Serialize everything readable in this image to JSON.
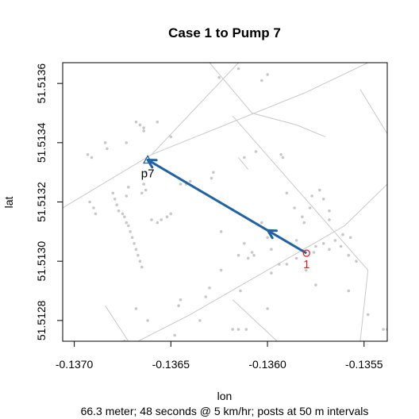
{
  "chart_data": {
    "type": "scatter",
    "title": "Case 1 to Pump 7",
    "xlabel": "lon",
    "ylabel": "lat",
    "subtitle": "66.3 meter; 48 seconds @ 5 km/hr; posts at 50 m intervals",
    "xlim": [
      -0.13706,
      -0.13538
    ],
    "ylim": [
      51.51273,
      51.51367
    ],
    "xticks": [
      -0.137,
      -0.1365,
      -0.136,
      -0.1355
    ],
    "xtick_labels": [
      "-0.1370",
      "-0.1365",
      "-0.1360",
      "-0.1355"
    ],
    "yticks": [
      51.5128,
      51.513,
      51.5132,
      51.5134,
      51.5136
    ],
    "ytick_labels": [
      "51.5128",
      "51.5130",
      "51.5132",
      "51.5134",
      "51.5136"
    ],
    "grid": false,
    "colors": {
      "path": "#1f62a5",
      "case": "#e3201c",
      "points": "#c8c8c8",
      "roads": "#c8c8c8",
      "pump": "#1f62a5"
    },
    "case": {
      "label": "1",
      "lon": -0.135798,
      "lat": 51.513027
    },
    "pump": {
      "label": "p7",
      "lon": -0.13662,
      "lat": 51.513342
    },
    "path": [
      [
        -0.135798,
        51.513027
      ],
      [
        -0.13662,
        51.513342
      ]
    ],
    "posts": [
      [
        -0.135998,
        51.513104
      ]
    ],
    "roads": [
      [
        [
          -0.13706,
          51.51318
        ],
        [
          -0.1366,
          51.51336
        ],
        [
          -0.1358,
          51.51357
        ],
        [
          -0.13548,
          51.51367
        ]
      ],
      [
        [
          -0.1366,
          51.51336
        ],
        [
          -0.13615,
          51.51367
        ]
      ],
      [
        [
          -0.1363,
          51.51367
        ],
        [
          -0.13608,
          51.5135
        ],
        [
          -0.13585,
          51.51346
        ],
        [
          -0.1357,
          51.51342
        ]
      ],
      [
        [
          -0.13618,
          51.51349
        ],
        [
          -0.13548,
          51.51297
        ]
      ],
      [
        [
          -0.13706,
          51.5126
        ],
        [
          -0.1364,
          51.51282
        ],
        [
          -0.1356,
          51.51312
        ],
        [
          -0.13538,
          51.51326
        ]
      ],
      [
        [
          -0.13684,
          51.51285
        ],
        [
          -0.13672,
          51.51273
        ]
      ],
      [
        [
          -0.13618,
          51.51287
        ],
        [
          -0.13595,
          51.51273
        ]
      ],
      [
        [
          -0.13548,
          51.51297
        ],
        [
          -0.13552,
          51.51273
        ]
      ],
      [
        [
          -0.13552,
          51.51358
        ],
        [
          -0.13538,
          51.51343
        ]
      ],
      [
        [
          -0.13615,
          51.51335
        ],
        [
          -0.1361,
          51.51331
        ]
      ]
    ],
    "points": [
      [
        -0.13693,
        51.51336
      ],
      [
        -0.13691,
        51.51335
      ],
      [
        -0.13684,
        51.5134
      ],
      [
        -0.13683,
        51.51338
      ],
      [
        -0.13673,
        51.5134
      ],
      [
        -0.13668,
        51.51347
      ],
      [
        -0.13666,
        51.51346
      ],
      [
        -0.13664,
        51.51345
      ],
      [
        -0.13664,
        51.51344
      ],
      [
        -0.13657,
        51.51347
      ],
      [
        -0.13692,
        51.5132
      ],
      [
        -0.1369,
        51.51318
      ],
      [
        -0.13689,
        51.51316
      ],
      [
        -0.1368,
        51.51323
      ],
      [
        -0.13679,
        51.51321
      ],
      [
        -0.13678,
        51.51319
      ],
      [
        -0.13677,
        51.51317
      ],
      [
        -0.13675,
        51.51316
      ],
      [
        -0.13674,
        51.51315
      ],
      [
        -0.13673,
        51.51313
      ],
      [
        -0.13672,
        51.51312
      ],
      [
        -0.13671,
        51.5131
      ],
      [
        -0.1367,
        51.51308
      ],
      [
        -0.13669,
        51.51306
      ],
      [
        -0.13668,
        51.51304
      ],
      [
        -0.13667,
        51.51302
      ],
      [
        -0.13666,
        51.513
      ],
      [
        -0.13665,
        51.51298
      ],
      [
        -0.13673,
        51.51322
      ],
      [
        -0.13672,
        51.51325
      ],
      [
        -0.13665,
        51.51323
      ],
      [
        -0.13664,
        51.51326
      ],
      [
        -0.13663,
        51.51324
      ],
      [
        -0.1366,
        51.51314
      ],
      [
        -0.13657,
        51.51313
      ],
      [
        -0.13655,
        51.51314
      ],
      [
        -0.13652,
        51.51315
      ],
      [
        -0.1365,
        51.51316
      ],
      [
        -0.13645,
        51.51326
      ],
      [
        -0.13642,
        51.51326
      ],
      [
        -0.1364,
        51.51327
      ],
      [
        -0.13629,
        51.51328
      ],
      [
        -0.13624,
        51.5131
      ],
      [
        -0.13612,
        51.51335
      ],
      [
        -0.13606,
        51.51337
      ],
      [
        -0.13612,
        51.51306
      ],
      [
        -0.13615,
        51.51302
      ],
      [
        -0.1361,
        51.51301
      ],
      [
        -0.13607,
        51.51302
      ],
      [
        -0.13603,
        51.51313
      ],
      [
        -0.136,
        51.51308
      ],
      [
        -0.13608,
        51.51303
      ],
      [
        -0.13598,
        51.51304
      ],
      [
        -0.13593,
        51.51336
      ],
      [
        -0.13592,
        51.51335
      ],
      [
        -0.1359,
        51.51323
      ],
      [
        -0.13586,
        51.51318
      ],
      [
        -0.13582,
        51.51315
      ],
      [
        -0.13581,
        51.51313
      ],
      [
        -0.13577,
        51.51322
      ],
      [
        -0.13578,
        51.51318
      ],
      [
        -0.13573,
        51.51324
      ],
      [
        -0.13571,
        51.51321
      ],
      [
        -0.13568,
        51.51317
      ],
      [
        -0.13568,
        51.51314
      ],
      [
        -0.13576,
        51.51303
      ],
      [
        -0.13575,
        51.51305
      ],
      [
        -0.13571,
        51.51306
      ],
      [
        -0.13568,
        51.51304
      ],
      [
        -0.13565,
        51.51307
      ],
      [
        -0.13562,
        51.51305
      ],
      [
        -0.13558,
        51.51302
      ],
      [
        -0.13554,
        51.513
      ],
      [
        -0.13594,
        51.51299
      ],
      [
        -0.1359,
        51.51299
      ],
      [
        -0.13585,
        51.51301
      ],
      [
        -0.13585,
        51.51307
      ],
      [
        -0.13614,
        51.5129
      ],
      [
        -0.13632,
        51.51288
      ],
      [
        -0.13645,
        51.51287
      ],
      [
        -0.13646,
        51.51285
      ],
      [
        -0.13662,
        51.5128
      ],
      [
        -0.13668,
        51.51284
      ],
      [
        -0.13674,
        51.51273
      ],
      [
        -0.13648,
        51.51275
      ],
      [
        -0.13618,
        51.51277
      ],
      [
        -0.13615,
        51.51277
      ],
      [
        -0.13611,
        51.51277
      ],
      [
        -0.136,
        51.51284
      ],
      [
        -0.13598,
        51.51296
      ],
      [
        -0.13558,
        51.5129
      ],
      [
        -0.13575,
        51.51292
      ],
      [
        -0.1358,
        51.51297
      ],
      [
        -0.13557,
        51.51308
      ],
      [
        -0.13561,
        51.51309
      ],
      [
        -0.13548,
        51.51282
      ],
      [
        -0.1354,
        51.51277
      ],
      [
        -0.13538,
        51.51277
      ],
      [
        -0.13663,
        51.5133
      ],
      [
        -0.1365,
        51.51342
      ],
      [
        -0.136,
        51.51363
      ],
      [
        -0.13603,
        51.51361
      ],
      [
        -0.13625,
        51.51362
      ],
      [
        -0.13615,
        51.51365
      ],
      [
        -0.13624,
        51.51297
      ],
      [
        -0.1363,
        51.51291
      ],
      [
        -0.13635,
        51.5128
      ],
      [
        -0.13628,
        51.5133
      ]
    ]
  }
}
